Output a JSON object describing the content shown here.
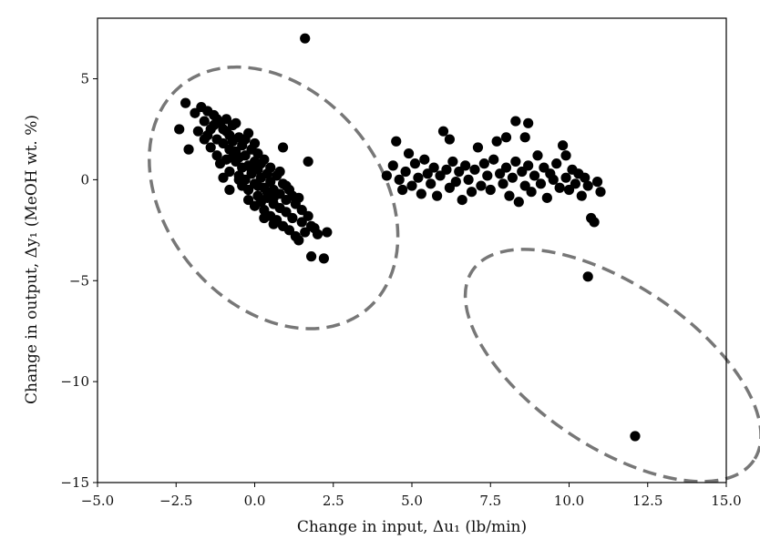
{
  "chart_data": {
    "type": "scatter",
    "title": "",
    "xlabel": "Change in input, Δu₁ (lb/min)",
    "ylabel": "Change in output, Δy₁ (MeOH wt. %)",
    "xlim": [
      -5.0,
      15.0
    ],
    "ylim": [
      -15,
      8
    ],
    "xticks": [
      -5.0,
      -2.5,
      0.0,
      2.5,
      5.0,
      7.5,
      10.0,
      12.5,
      15.0
    ],
    "xtick_labels": [
      "−5.0",
      "−2.5",
      "0.0",
      "2.5",
      "5.0",
      "7.5",
      "10.0",
      "12.5",
      "15.0"
    ],
    "yticks": [
      5,
      0,
      -5,
      -10,
      -15
    ],
    "ytick_labels": [
      "5",
      "0",
      "−5",
      "−10",
      "−15"
    ],
    "grid": false,
    "marker_color": "#000000",
    "series": [
      {
        "points": [
          [
            -2.4,
            2.5
          ],
          [
            -2.2,
            3.8
          ],
          [
            -2.1,
            1.5
          ],
          [
            -1.9,
            3.3
          ],
          [
            -1.8,
            2.4
          ],
          [
            -1.7,
            3.6
          ],
          [
            -1.6,
            2.9
          ],
          [
            -1.5,
            2.2
          ],
          [
            -1.5,
            3.4
          ],
          [
            -1.4,
            1.6
          ],
          [
            -1.3,
            2.7
          ],
          [
            -1.3,
            3.2
          ],
          [
            -1.2,
            1.2
          ],
          [
            -1.2,
            2.0
          ],
          [
            -1.1,
            2.8
          ],
          [
            -1.1,
            0.8
          ],
          [
            -1.0,
            1.8
          ],
          [
            -1.0,
            2.5
          ],
          [
            -0.9,
            1.0
          ],
          [
            -0.9,
            3.0
          ],
          [
            -0.8,
            1.5
          ],
          [
            -0.8,
            2.2
          ],
          [
            -0.8,
            0.4
          ],
          [
            -0.7,
            1.9
          ],
          [
            -0.7,
            2.7
          ],
          [
            -0.6,
            0.9
          ],
          [
            -0.6,
            1.4
          ],
          [
            -0.5,
            0.2
          ],
          [
            -0.5,
            2.1
          ],
          [
            -0.5,
            1.1
          ],
          [
            -0.4,
            0.6
          ],
          [
            -0.4,
            1.7
          ],
          [
            -0.4,
            -0.3
          ],
          [
            -0.3,
            1.2
          ],
          [
            -0.3,
            0.0
          ],
          [
            -0.2,
            2.3
          ],
          [
            -0.2,
            0.7
          ],
          [
            -0.2,
            -0.5
          ],
          [
            -0.1,
            1.5
          ],
          [
            -0.1,
            0.3
          ],
          [
            0.0,
            0.9
          ],
          [
            0.0,
            -0.2
          ],
          [
            0.0,
            1.8
          ],
          [
            0.1,
            -0.8
          ],
          [
            0.1,
            0.5
          ],
          [
            0.1,
            1.3
          ],
          [
            0.2,
            0.1
          ],
          [
            0.2,
            -1.1
          ],
          [
            0.2,
            0.8
          ],
          [
            0.3,
            -0.4
          ],
          [
            0.3,
            1.0
          ],
          [
            0.3,
            -1.5
          ],
          [
            0.4,
            0.3
          ],
          [
            0.4,
            -0.9
          ],
          [
            0.5,
            -0.1
          ],
          [
            0.5,
            -1.8
          ],
          [
            0.5,
            0.6
          ],
          [
            0.6,
            -1.2
          ],
          [
            0.6,
            -0.5
          ],
          [
            0.7,
            -2.0
          ],
          [
            0.7,
            0.2
          ],
          [
            0.8,
            -1.4
          ],
          [
            0.8,
            -0.7
          ],
          [
            0.9,
            -2.3
          ],
          [
            0.9,
            -0.2
          ],
          [
            1.0,
            -1.6
          ],
          [
            1.0,
            -1.0
          ],
          [
            1.1,
            -2.5
          ],
          [
            1.1,
            -0.5
          ],
          [
            1.2,
            -1.9
          ],
          [
            1.3,
            -1.2
          ],
          [
            1.3,
            -2.8
          ],
          [
            1.4,
            -0.9
          ],
          [
            1.5,
            -2.1
          ],
          [
            1.5,
            -1.5
          ],
          [
            1.6,
            -2.6
          ],
          [
            1.7,
            -1.8
          ],
          [
            1.8,
            -2.3
          ],
          [
            2.0,
            -2.7
          ],
          [
            -1.6,
            2.0
          ],
          [
            -1.4,
            2.5
          ],
          [
            -1.2,
            3.0
          ],
          [
            -0.9,
            2.4
          ],
          [
            -0.6,
            2.8
          ],
          [
            -0.7,
            1.1
          ],
          [
            -0.3,
            2.0
          ],
          [
            -0.1,
            0.5
          ],
          [
            0.1,
            -0.3
          ],
          [
            0.4,
            -0.6
          ],
          [
            0.6,
            -0.9
          ],
          [
            0.8,
            0.4
          ],
          [
            1.0,
            -0.3
          ],
          [
            1.2,
            -0.8
          ],
          [
            -0.5,
            0.0
          ],
          [
            -0.2,
            -1.0
          ],
          [
            0.0,
            -1.3
          ],
          [
            0.3,
            -1.9
          ],
          [
            0.6,
            -2.2
          ],
          [
            -1.0,
            0.1
          ],
          [
            -0.8,
            -0.5
          ],
          [
            0.9,
            1.6
          ],
          [
            1.7,
            0.9
          ],
          [
            1.6,
            7.0
          ],
          [
            1.8,
            -3.8
          ],
          [
            2.2,
            -3.9
          ],
          [
            2.3,
            -2.6
          ],
          [
            1.9,
            -2.4
          ],
          [
            1.4,
            -3.0
          ]
        ]
      },
      {
        "points": [
          [
            4.2,
            0.2
          ],
          [
            4.4,
            0.7
          ],
          [
            4.5,
            1.9
          ],
          [
            4.6,
            0.0
          ],
          [
            4.7,
            -0.5
          ],
          [
            4.8,
            0.4
          ],
          [
            4.9,
            1.3
          ],
          [
            5.0,
            -0.3
          ],
          [
            5.1,
            0.8
          ],
          [
            5.2,
            0.1
          ],
          [
            5.3,
            -0.7
          ],
          [
            5.4,
            1.0
          ],
          [
            5.5,
            0.3
          ],
          [
            5.6,
            -0.2
          ],
          [
            5.7,
            0.6
          ],
          [
            5.8,
            -0.8
          ],
          [
            5.9,
            0.2
          ],
          [
            6.0,
            2.4
          ],
          [
            6.1,
            0.5
          ],
          [
            6.2,
            2.0
          ],
          [
            6.2,
            -0.4
          ],
          [
            6.3,
            0.9
          ],
          [
            6.4,
            -0.1
          ],
          [
            6.5,
            0.4
          ],
          [
            6.6,
            -1.0
          ],
          [
            6.7,
            0.7
          ],
          [
            6.8,
            0.0
          ],
          [
            6.9,
            -0.6
          ],
          [
            7.0,
            0.5
          ],
          [
            7.1,
            1.6
          ],
          [
            7.2,
            -0.3
          ],
          [
            7.3,
            0.8
          ],
          [
            7.4,
            0.2
          ],
          [
            7.5,
            -0.5
          ],
          [
            7.6,
            1.0
          ],
          [
            7.7,
            1.9
          ],
          [
            7.8,
            0.3
          ],
          [
            7.9,
            -0.2
          ],
          [
            8.0,
            2.1
          ],
          [
            8.0,
            0.6
          ],
          [
            8.1,
            -0.8
          ],
          [
            8.2,
            0.1
          ],
          [
            8.3,
            2.9
          ],
          [
            8.3,
            0.9
          ],
          [
            8.4,
            -1.1
          ],
          [
            8.5,
            0.4
          ],
          [
            8.6,
            2.1
          ],
          [
            8.6,
            -0.3
          ],
          [
            8.7,
            2.8
          ],
          [
            8.7,
            0.7
          ],
          [
            8.8,
            -0.6
          ],
          [
            8.9,
            0.2
          ],
          [
            9.0,
            1.2
          ],
          [
            9.1,
            -0.2
          ],
          [
            9.2,
            0.6
          ],
          [
            9.3,
            -0.9
          ],
          [
            9.4,
            0.3
          ],
          [
            9.5,
            0.0
          ],
          [
            9.6,
            0.8
          ],
          [
            9.7,
            -0.4
          ],
          [
            9.8,
            1.7
          ],
          [
            9.9,
            1.2
          ],
          [
            9.9,
            0.1
          ],
          [
            10.0,
            -0.5
          ],
          [
            10.1,
            0.5
          ],
          [
            10.2,
            -0.2
          ],
          [
            10.3,
            0.3
          ],
          [
            10.4,
            -0.8
          ],
          [
            10.5,
            0.1
          ],
          [
            10.6,
            -0.3
          ],
          [
            10.7,
            -1.9
          ],
          [
            10.8,
            -2.1
          ],
          [
            10.9,
            -0.1
          ],
          [
            11.0,
            -0.6
          ],
          [
            10.6,
            -4.8
          ],
          [
            12.1,
            -12.7
          ]
        ]
      }
    ],
    "annotations": [
      {
        "shape": "dashed-ellipse",
        "color": "#777777",
        "center": [
          0.6,
          -0.9
        ],
        "rx": 3.4,
        "ry": 7.2,
        "rotate": -40
      },
      {
        "shape": "dashed-ellipse",
        "color": "#777777",
        "center": [
          11.4,
          -9.2
        ],
        "rx": 5.4,
        "ry": 4.0,
        "rotate": 34
      }
    ]
  }
}
